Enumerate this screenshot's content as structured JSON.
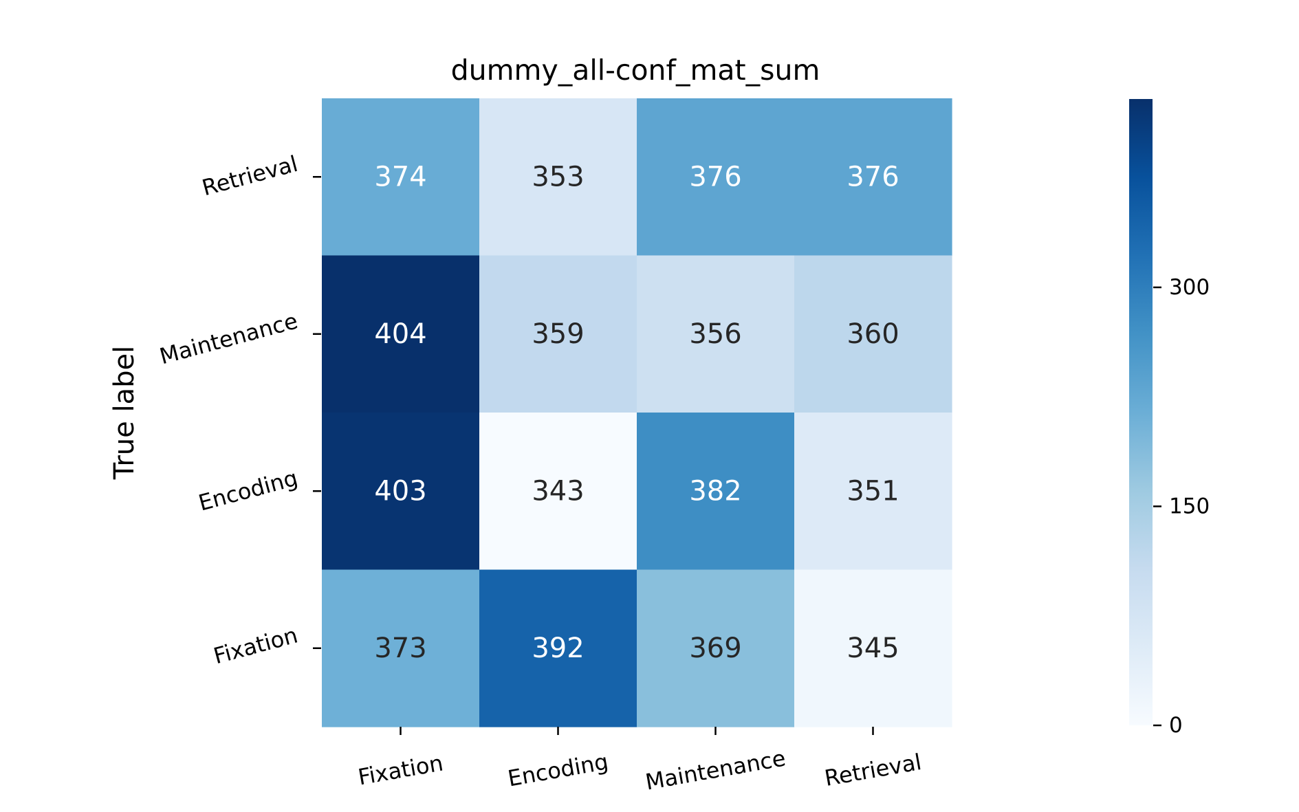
{
  "chart_data": {
    "type": "heatmap",
    "title": "dummy_all-conf_mat_sum",
    "ylabel": "True label",
    "xlabel": "",
    "x_categories": [
      "Fixation",
      "Encoding",
      "Maintenance",
      "Retrieval"
    ],
    "y_categories": [
      "Retrieval",
      "Maintenance",
      "Encoding",
      "Fixation"
    ],
    "values": [
      [
        374,
        353,
        376,
        376
      ],
      [
        404,
        359,
        356,
        360
      ],
      [
        403,
        343,
        382,
        351
      ],
      [
        373,
        392,
        369,
        345
      ]
    ],
    "colormap": "Blues",
    "colorbar": {
      "ticks": [
        0,
        150,
        300
      ],
      "tick_labels": [
        "0",
        "150",
        "300"
      ]
    }
  }
}
